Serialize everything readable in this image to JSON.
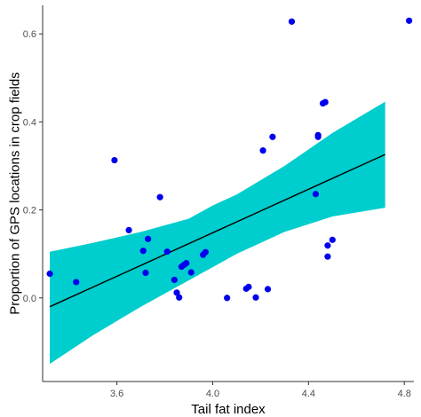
{
  "chart_data": {
    "type": "scatter",
    "xlabel": "Tail fat index",
    "ylabel": "Proportion of GPS locations in crop fields",
    "xlim": [
      3.29,
      4.84
    ],
    "ylim": [
      -0.19,
      0.665
    ],
    "x_ticks": [
      {
        "value": 3.6,
        "label": "3.6"
      },
      {
        "value": 4.0,
        "label": "4.0"
      },
      {
        "value": 4.4,
        "label": "4.4"
      },
      {
        "value": 4.8,
        "label": "4.8"
      }
    ],
    "y_ticks": [
      {
        "value": 0.0,
        "label": "0.0"
      },
      {
        "value": 0.2,
        "label": "0.2"
      },
      {
        "value": 0.4,
        "label": "0.4"
      },
      {
        "value": 0.6,
        "label": "0.6"
      }
    ],
    "grid": false,
    "colors": {
      "points": "#0000ee",
      "ribbon": "#00cdcd",
      "line": "#000000",
      "axis": "#333333"
    },
    "series": [
      {
        "x": [
          3.32,
          3.43,
          3.59,
          3.65,
          3.71,
          3.72,
          3.73,
          3.78,
          3.81,
          3.84,
          3.85,
          3.86,
          3.87,
          3.88,
          3.89,
          3.91,
          3.96,
          3.97,
          4.06,
          4.14,
          4.15,
          4.18,
          4.21,
          4.23,
          4.25,
          4.33,
          4.43,
          4.44,
          4.44,
          4.46,
          4.47,
          4.48,
          4.48,
          4.5,
          4.82
        ],
        "y": [
          0.055,
          0.036,
          0.313,
          0.154,
          0.107,
          0.057,
          0.134,
          0.229,
          0.105,
          0.041,
          0.012,
          0.001,
          0.071,
          0.075,
          0.079,
          0.058,
          0.098,
          0.104,
          0.0,
          0.021,
          0.025,
          0.001,
          0.335,
          0.02,
          0.366,
          0.628,
          0.236,
          0.366,
          0.37,
          0.442,
          0.445,
          0.119,
          0.094,
          0.132,
          0.63
        ]
      }
    ],
    "fit": {
      "x": [
        3.32,
        4.72
      ],
      "y": [
        -0.02,
        0.326
      ]
    },
    "band": {
      "x": [
        3.32,
        3.5,
        3.7,
        3.9,
        4.0,
        4.1,
        4.3,
        4.5,
        4.72
      ],
      "lower": [
        -0.15,
        -0.085,
        -0.02,
        0.04,
        0.07,
        0.1,
        0.15,
        0.185,
        0.205
      ],
      "upper": [
        0.105,
        0.125,
        0.15,
        0.18,
        0.21,
        0.235,
        0.3,
        0.375,
        0.446
      ]
    }
  }
}
